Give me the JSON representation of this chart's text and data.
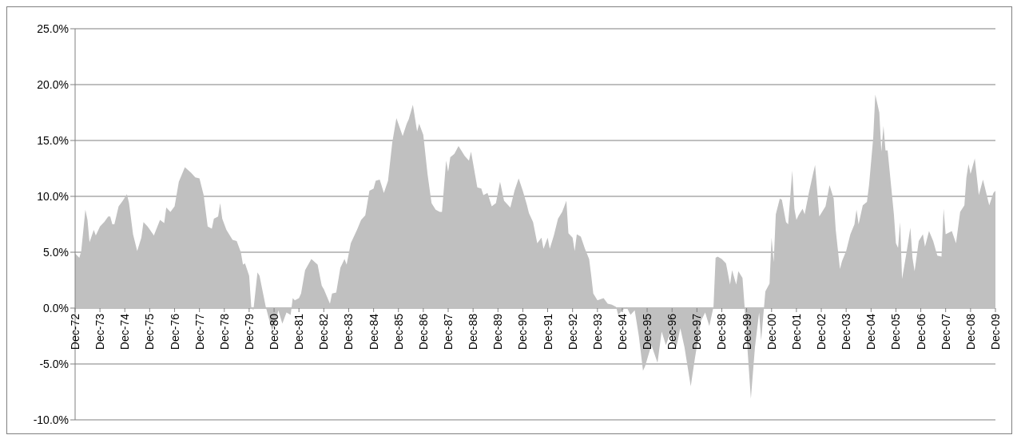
{
  "chart_data": {
    "type": "area",
    "x": [
      "1972-12",
      "1973-02",
      "1973-03",
      "1973-05",
      "1973-06",
      "1973-07",
      "1973-09",
      "1973-10",
      "1973-12",
      "1974-02",
      "1974-04",
      "1974-05",
      "1974-06",
      "1974-07",
      "1974-09",
      "1974-11",
      "1975-01",
      "1975-02",
      "1975-04",
      "1975-06",
      "1975-08",
      "1975-09",
      "1975-11",
      "1976-02",
      "1976-05",
      "1976-07",
      "1976-08",
      "1976-10",
      "1976-12",
      "1977-02",
      "1977-05",
      "1977-08",
      "1977-10",
      "1977-12",
      "1978-02",
      "1978-04",
      "1978-06",
      "1978-07",
      "1978-09",
      "1978-10",
      "1978-11",
      "1979-01",
      "1979-04",
      "1979-06",
      "1979-08",
      "1979-09",
      "1979-10",
      "1979-12",
      "1980-01",
      "1980-02",
      "1980-04",
      "1980-05",
      "1980-08",
      "1980-11",
      "1981-01",
      "1981-02",
      "1981-04",
      "1981-06",
      "1981-08",
      "1981-09",
      "1981-10",
      "1981-12",
      "1982-01",
      "1982-03",
      "1982-06",
      "1982-09",
      "1982-11",
      "1982-12",
      "1983-03",
      "1983-04",
      "1983-06",
      "1983-08",
      "1983-10",
      "1983-11",
      "1984-01",
      "1984-04",
      "1984-06",
      "1984-08",
      "1984-10",
      "1984-12",
      "1985-01",
      "1985-03",
      "1985-05",
      "1985-07",
      "1985-09",
      "1985-11",
      "1986-02",
      "1986-04",
      "1986-05",
      "1986-07",
      "1986-09",
      "1986-10",
      "1986-12",
      "1987-02",
      "1987-04",
      "1987-06",
      "1987-08",
      "1987-09",
      "1987-11",
      "1987-12",
      "1988-01",
      "1988-03",
      "1988-05",
      "1988-08",
      "1988-10",
      "1988-11",
      "1989-02",
      "1989-04",
      "1989-05",
      "1989-07",
      "1989-09",
      "1989-11",
      "1990-01",
      "1990-03",
      "1990-06",
      "1990-08",
      "1990-10",
      "1990-12",
      "1991-02",
      "1991-03",
      "1991-05",
      "1991-07",
      "1991-09",
      "1991-10",
      "1991-12",
      "1992-01",
      "1992-03",
      "1992-05",
      "1992-07",
      "1992-09",
      "1992-10",
      "1992-12",
      "1993-01",
      "1993-02",
      "1993-04",
      "1993-06",
      "1993-08",
      "1993-09",
      "1993-10",
      "1993-12",
      "1994-03",
      "1994-05",
      "1994-07",
      "1994-09",
      "1994-10",
      "1994-12",
      "1995-02",
      "1995-04",
      "1995-06",
      "1995-08",
      "1995-10",
      "1995-11",
      "1996-02",
      "1996-05",
      "1996-07",
      "1996-09",
      "1996-11",
      "1997-02",
      "1997-04",
      "1997-06",
      "1997-09",
      "1997-11",
      "1998-02",
      "1998-04",
      "1998-06",
      "1998-08",
      "1998-09",
      "1998-10",
      "1998-12",
      "1999-02",
      "1999-04",
      "1999-05",
      "1999-07",
      "1999-08",
      "1999-10",
      "1999-11",
      "2000-02",
      "2000-04",
      "2000-06",
      "2000-07",
      "2000-09",
      "2000-11",
      "2000-12",
      "2001-01",
      "2001-02",
      "2001-04",
      "2001-05",
      "2001-07",
      "2001-08",
      "2001-10",
      "2001-11",
      "2001-12",
      "2002-01",
      "2002-03",
      "2002-04",
      "2002-06",
      "2002-08",
      "2002-09",
      "2002-11",
      "2003-02",
      "2003-04",
      "2003-06",
      "2003-07",
      "2003-09",
      "2003-10",
      "2003-12",
      "2004-02",
      "2004-04",
      "2004-05",
      "2004-06",
      "2004-08",
      "2004-10",
      "2004-11",
      "2005-01",
      "2005-02",
      "2005-04",
      "2005-05",
      "2005-06",
      "2005-07",
      "2005-08",
      "2005-11",
      "2005-12",
      "2006-01",
      "2006-02",
      "2006-03",
      "2006-05",
      "2006-07",
      "2006-08",
      "2006-09",
      "2006-11",
      "2007-01",
      "2007-02",
      "2007-04",
      "2007-06",
      "2007-08",
      "2007-10",
      "2007-11",
      "2007-12",
      "2008-03",
      "2008-05",
      "2008-07",
      "2008-09",
      "2008-10",
      "2008-11",
      "2008-12",
      "2009-02",
      "2009-04",
      "2009-06",
      "2009-09",
      "2009-11",
      "2009-12"
    ],
    "series": [
      {
        "color": "#c0c0c0",
        "values": [
          4.9,
          4.5,
          5.1,
          8.8,
          7.9,
          5.9,
          7.0,
          6.5,
          7.3,
          7.7,
          8.2,
          8.2,
          7.5,
          7.5,
          9.1,
          9.6,
          10.2,
          9.4,
          6.6,
          5.1,
          6.3,
          7.7,
          7.3,
          6.5,
          7.9,
          7.6,
          9.0,
          8.6,
          9.1,
          11.3,
          12.6,
          12.1,
          11.7,
          11.6,
          10.1,
          7.3,
          7.1,
          8.0,
          8.2,
          9.4,
          8.0,
          7.0,
          6.1,
          6.0,
          5.0,
          3.9,
          4.0,
          2.9,
          0.1,
          -0.2,
          3.2,
          2.9,
          0.1,
          -2.0,
          -1.1,
          -0.2,
          -1.4,
          -0.4,
          -0.6,
          0.9,
          0.7,
          0.9,
          1.3,
          3.4,
          4.4,
          3.9,
          2.0,
          1.7,
          0.4,
          1.3,
          1.4,
          3.6,
          4.4,
          3.9,
          5.8,
          7.0,
          7.9,
          8.3,
          10.5,
          10.7,
          11.4,
          11.5,
          10.3,
          11.4,
          14.8,
          17.0,
          15.4,
          16.5,
          16.9,
          18.2,
          15.8,
          16.5,
          15.5,
          12.0,
          9.4,
          8.8,
          8.6,
          8.6,
          13.2,
          12.2,
          13.5,
          13.8,
          14.5,
          13.6,
          13.2,
          14.0,
          10.8,
          10.7,
          10.1,
          10.3,
          9.1,
          9.4,
          11.3,
          9.6,
          9.0,
          10.5,
          11.6,
          10.5,
          9.2,
          8.5,
          7.7,
          5.8,
          6.3,
          5.3,
          6.3,
          5.3,
          6.5,
          8.0,
          8.6,
          9.6,
          6.7,
          6.3,
          5.1,
          6.6,
          6.4,
          5.3,
          4.4,
          2.9,
          1.3,
          0.7,
          0.9,
          0.4,
          0.3,
          0.1,
          -0.6,
          -0.2,
          0.1,
          -0.6,
          -0.2,
          -2.5,
          -5.6,
          -5.2,
          -3.3,
          -4.9,
          -2.1,
          -3.3,
          -2.3,
          -3.5,
          -1.8,
          -3.5,
          -7.0,
          -4.5,
          -1.1,
          -0.4,
          -1.6,
          0.1,
          4.5,
          4.6,
          4.4,
          4.0,
          2.1,
          3.4,
          2.1,
          3.3,
          2.7,
          0.1,
          -8.1,
          -3.5,
          -0.4,
          -2.9,
          1.5,
          2.2,
          6.3,
          4.1,
          8.4,
          9.8,
          9.7,
          7.7,
          7.5,
          12.3,
          8.9,
          7.9,
          8.3,
          8.9,
          8.4,
          10.3,
          12.0,
          12.8,
          8.2,
          9.1,
          11.0,
          9.8,
          7.0,
          3.5,
          4.2,
          5.1,
          6.6,
          7.5,
          8.8,
          7.5,
          9.2,
          9.5,
          11.0,
          15.2,
          19.1,
          17.5,
          14.0,
          16.3,
          14.1,
          14.1,
          8.4,
          5.8,
          5.4,
          7.7,
          2.6,
          4.8,
          7.2,
          4.5,
          3.3,
          6.0,
          6.6,
          5.5,
          6.9,
          6.0,
          4.7,
          4.6,
          8.9,
          6.6,
          6.9,
          5.8,
          8.6,
          9.2,
          11.7,
          12.9,
          12.0,
          13.4,
          10.1,
          11.5,
          9.2,
          10.3,
          10.5
        ]
      }
    ],
    "xlim": [
      "1972-12",
      "2009-12"
    ],
    "xticks": [
      {
        "value": "1972-12",
        "label": "Dec-72"
      },
      {
        "value": "1973-12",
        "label": "Dec-73"
      },
      {
        "value": "1974-12",
        "label": "Dec-74"
      },
      {
        "value": "1975-12",
        "label": "Dec-75"
      },
      {
        "value": "1976-12",
        "label": "Dec-76"
      },
      {
        "value": "1977-12",
        "label": "Dec-77"
      },
      {
        "value": "1978-12",
        "label": "Dec-78"
      },
      {
        "value": "1979-12",
        "label": "Dec-79"
      },
      {
        "value": "1980-12",
        "label": "Dec-80"
      },
      {
        "value": "1981-12",
        "label": "Dec-81"
      },
      {
        "value": "1982-12",
        "label": "Dec-82"
      },
      {
        "value": "1983-12",
        "label": "Dec-83"
      },
      {
        "value": "1984-12",
        "label": "Dec-84"
      },
      {
        "value": "1985-12",
        "label": "Dec-85"
      },
      {
        "value": "1986-12",
        "label": "Dec-86"
      },
      {
        "value": "1987-12",
        "label": "Dec-87"
      },
      {
        "value": "1988-12",
        "label": "Dec-88"
      },
      {
        "value": "1989-12",
        "label": "Dec-89"
      },
      {
        "value": "1990-12",
        "label": "Dec-90"
      },
      {
        "value": "1991-12",
        "label": "Dec-91"
      },
      {
        "value": "1992-12",
        "label": "Dec-92"
      },
      {
        "value": "1993-12",
        "label": "Dec-93"
      },
      {
        "value": "1994-12",
        "label": "Dec-94"
      },
      {
        "value": "1995-12",
        "label": "Dec-95"
      },
      {
        "value": "1996-12",
        "label": "Dec-96"
      },
      {
        "value": "1997-12",
        "label": "Dec-97"
      },
      {
        "value": "1998-12",
        "label": "Dec-98"
      },
      {
        "value": "1999-12",
        "label": "Dec-99"
      },
      {
        "value": "2000-12",
        "label": "Dec-00"
      },
      {
        "value": "2001-12",
        "label": "Dec-01"
      },
      {
        "value": "2002-12",
        "label": "Dec-02"
      },
      {
        "value": "2003-12",
        "label": "Dec-03"
      },
      {
        "value": "2004-12",
        "label": "Dec-04"
      },
      {
        "value": "2005-12",
        "label": "Dec-05"
      },
      {
        "value": "2006-12",
        "label": "Dec-06"
      },
      {
        "value": "2007-12",
        "label": "Dec-07"
      },
      {
        "value": "2008-12",
        "label": "Dec-08"
      },
      {
        "value": "2009-12",
        "label": "Dec-09"
      }
    ],
    "ylim": [
      -10,
      25
    ],
    "yticks": [
      {
        "value": -10,
        "label": "-10.0%"
      },
      {
        "value": -5,
        "label": "-5.0%"
      },
      {
        "value": 0,
        "label": "0.0%"
      },
      {
        "value": 5,
        "label": "5.0%"
      },
      {
        "value": 10,
        "label": "10.0%"
      },
      {
        "value": 15,
        "label": "15.0%"
      },
      {
        "value": 20,
        "label": "20.0%"
      },
      {
        "value": 25,
        "label": "25.0%"
      }
    ],
    "grid": "y"
  }
}
